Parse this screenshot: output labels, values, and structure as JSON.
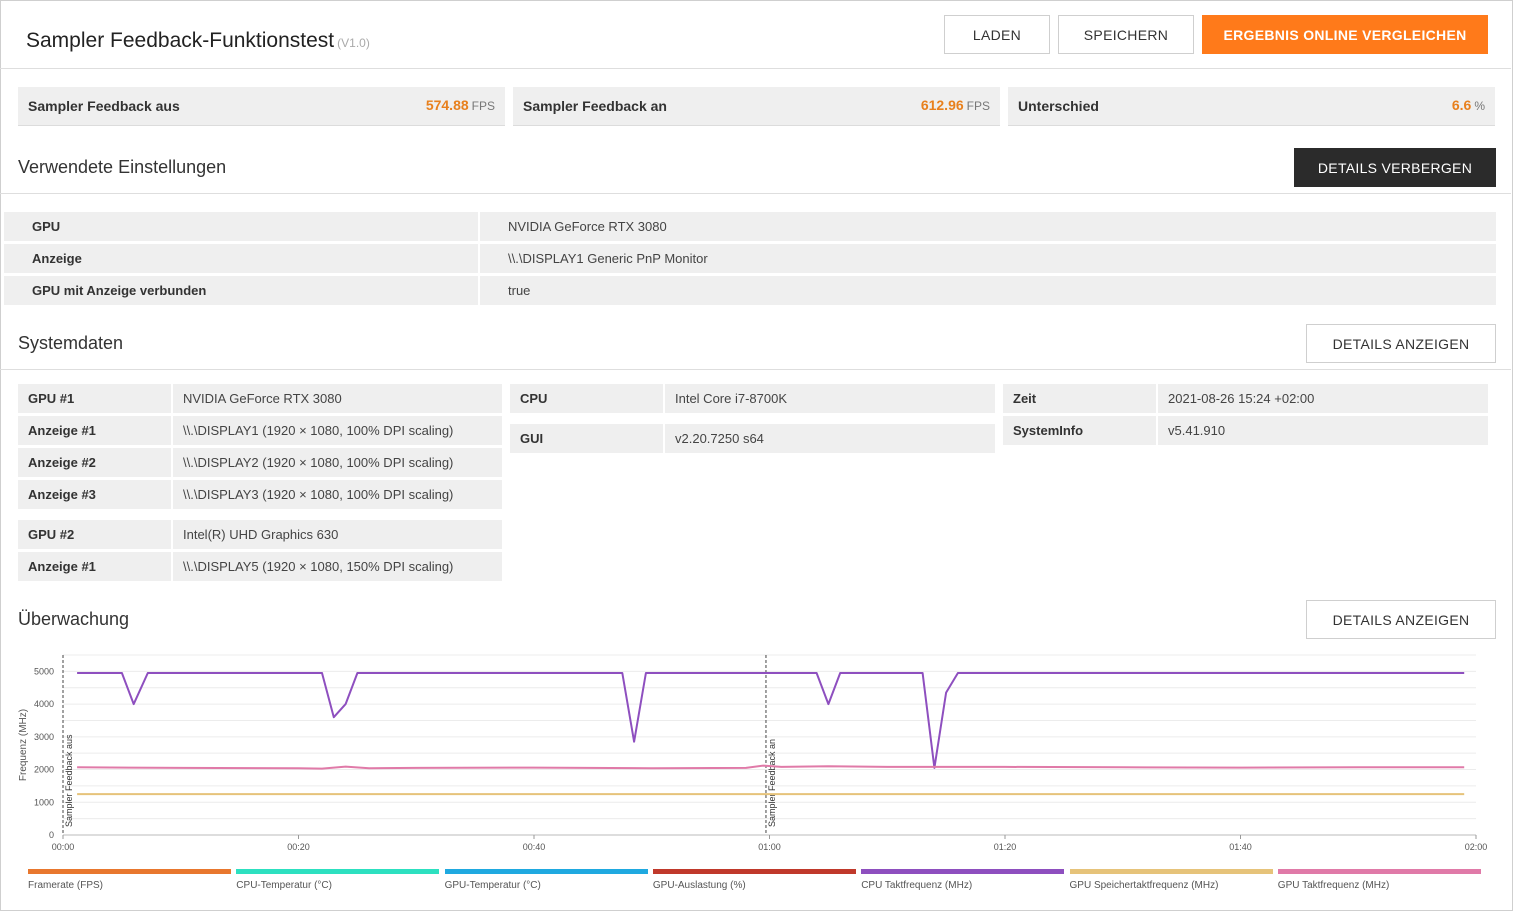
{
  "header": {
    "title": "Sampler Feedback-Funktionstest",
    "version": "(V1.0)",
    "load_label": "LADEN",
    "save_label": "SPEICHERN",
    "compare_label": "ERGEBNIS ONLINE VERGLEICHEN"
  },
  "scores": [
    {
      "label": "Sampler Feedback aus",
      "value": "574.88",
      "unit": "FPS"
    },
    {
      "label": "Sampler Feedback an",
      "value": "612.96",
      "unit": "FPS"
    },
    {
      "label": "Unterschied",
      "value": "6.6",
      "unit": "%"
    }
  ],
  "settings": {
    "title": "Verwendete Einstellungen",
    "toggle_label": "DETAILS VERBERGEN",
    "rows": [
      {
        "key": "GPU",
        "value": "NVIDIA GeForce RTX 3080"
      },
      {
        "key": "Anzeige",
        "value": "\\\\.\\DISPLAY1 Generic PnP Monitor"
      },
      {
        "key": "GPU mit Anzeige verbunden",
        "value": "true"
      }
    ]
  },
  "system": {
    "title": "Systemdaten",
    "toggle_label": "DETAILS ANZEIGEN",
    "col1a": [
      {
        "key": "GPU #1",
        "value": "NVIDIA GeForce RTX 3080"
      },
      {
        "key": "Anzeige #1",
        "value": "\\\\.\\DISPLAY1 (1920 × 1080, 100% DPI scaling)"
      },
      {
        "key": "Anzeige #2",
        "value": "\\\\.\\DISPLAY2 (1920 × 1080, 100% DPI scaling)"
      },
      {
        "key": "Anzeige #3",
        "value": "\\\\.\\DISPLAY3 (1920 × 1080, 100% DPI scaling)"
      }
    ],
    "col1b": [
      {
        "key": "GPU #2",
        "value": "Intel(R) UHD Graphics 630"
      },
      {
        "key": "Anzeige #1",
        "value": "\\\\.\\DISPLAY5 (1920 × 1080, 150% DPI scaling)"
      }
    ],
    "col2": [
      {
        "key": "CPU",
        "value": "Intel Core i7-8700K"
      },
      {
        "key": "GUI",
        "value": "v2.20.7250 s64"
      }
    ],
    "col3": [
      {
        "key": "Zeit",
        "value": "2021-08-26 15:24 +02:00"
      },
      {
        "key": "SystemInfo",
        "value": "v5.41.910"
      }
    ]
  },
  "monitoring": {
    "title": "Überwachung",
    "toggle_label": "DETAILS ANZEIGEN"
  },
  "chart_data": {
    "type": "line",
    "ylabel": "Frequenz (MHz)",
    "ylim": [
      0,
      5500
    ],
    "yticks": [
      0,
      1000,
      2000,
      3000,
      4000,
      5000
    ],
    "xlim": [
      0,
      120
    ],
    "xticks": [
      {
        "v": 0,
        "label": "00:00"
      },
      {
        "v": 20,
        "label": "00:20"
      },
      {
        "v": 40,
        "label": "00:40"
      },
      {
        "v": 60,
        "label": "01:00"
      },
      {
        "v": 80,
        "label": "01:20"
      },
      {
        "v": 100,
        "label": "01:40"
      },
      {
        "v": 120,
        "label": "02:00"
      }
    ],
    "markers": [
      {
        "x": 0,
        "label": "Sampler Feedback aus"
      },
      {
        "x": 59.7,
        "label": "Sampler Feedback an"
      }
    ],
    "grid": true,
    "legend_position": "bottom",
    "legend": [
      {
        "name": "Framerate (FPS)",
        "color": "#e8772e"
      },
      {
        "name": "CPU-Temperatur (°C)",
        "color": "#2de0c0"
      },
      {
        "name": "GPU-Temperatur (°C)",
        "color": "#1fa9e0"
      },
      {
        "name": "GPU-Auslastung (%)",
        "color": "#c0392b"
      },
      {
        "name": "CPU Taktfrequenz (MHz)",
        "color": "#8e4fbf"
      },
      {
        "name": "GPU Speichertaktfrequenz (MHz)",
        "color": "#e6c37a"
      },
      {
        "name": "GPU Taktfrequenz (MHz)",
        "color": "#e07aa8"
      }
    ],
    "series": [
      {
        "name": "CPU Taktfrequenz (MHz)",
        "color": "#8e4fbf",
        "x": [
          1.2,
          5,
          6,
          7.2,
          12,
          22,
          23,
          24,
          25,
          25.8,
          40,
          47.5,
          48.5,
          49.5,
          60,
          64,
          65,
          66,
          73,
          74,
          75,
          76,
          77,
          90,
          110,
          113,
          119
        ],
        "y": [
          4950,
          4950,
          4000,
          4950,
          4950,
          4950,
          3600,
          4000,
          4950,
          4950,
          4950,
          4950,
          2850,
          4950,
          4950,
          4950,
          4000,
          4950,
          4950,
          2050,
          4350,
          4950,
          4950,
          4950,
          4950,
          4950,
          4950
        ]
      },
      {
        "name": "GPU Taktfrequenz (MHz)",
        "color": "#e07aa8",
        "x": [
          1.2,
          10,
          20,
          22,
          24,
          26,
          30,
          40,
          50,
          58,
          59.5,
          61,
          65,
          70,
          80,
          90,
          100,
          110,
          119
        ],
        "y": [
          2070,
          2050,
          2040,
          2030,
          2090,
          2040,
          2050,
          2060,
          2040,
          2050,
          2120,
          2080,
          2100,
          2080,
          2080,
          2070,
          2060,
          2070,
          2070
        ]
      },
      {
        "name": "GPU Speichertaktfrequenz (MHz)",
        "color": "#e6c37a",
        "x": [
          1.2,
          119
        ],
        "y": [
          1250,
          1250
        ]
      }
    ]
  }
}
